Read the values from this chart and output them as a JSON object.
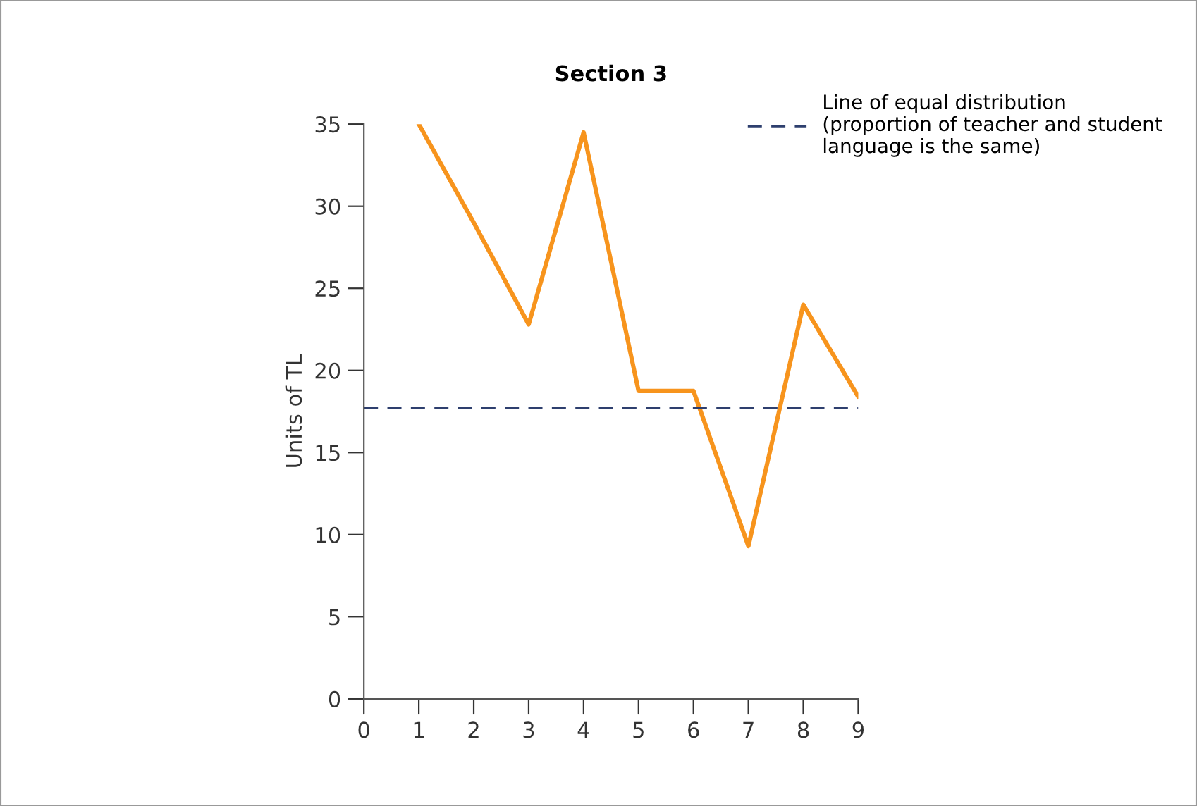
{
  "chart_data": {
    "type": "line",
    "title": "Section 3",
    "ylabel": "Units of TL",
    "x": [
      1,
      2,
      3,
      4,
      5,
      6,
      7,
      8,
      9
    ],
    "series": [
      {
        "color": "#f7941d",
        "values": [
          35,
          29,
          22.8,
          34.5,
          18.75,
          18.75,
          9.3,
          24,
          18.4
        ]
      }
    ],
    "xlim": [
      0,
      9
    ],
    "xticks": [
      0,
      1,
      2,
      3,
      4,
      5,
      6,
      7,
      8,
      9
    ],
    "ylim": [
      0,
      35
    ],
    "yticks": [
      0,
      5,
      10,
      15,
      20,
      25,
      30,
      35
    ],
    "ref_lines": [
      {
        "axis": "y",
        "value": 17.7,
        "label": "Line of equal distribution\n(proportion of teacher and student\nlanguage is the same)",
        "color": "#2e3f6e",
        "line_style": "dashed"
      }
    ],
    "grid": false,
    "legend": "top right",
    "marker": "none",
    "line_style": "solid"
  }
}
